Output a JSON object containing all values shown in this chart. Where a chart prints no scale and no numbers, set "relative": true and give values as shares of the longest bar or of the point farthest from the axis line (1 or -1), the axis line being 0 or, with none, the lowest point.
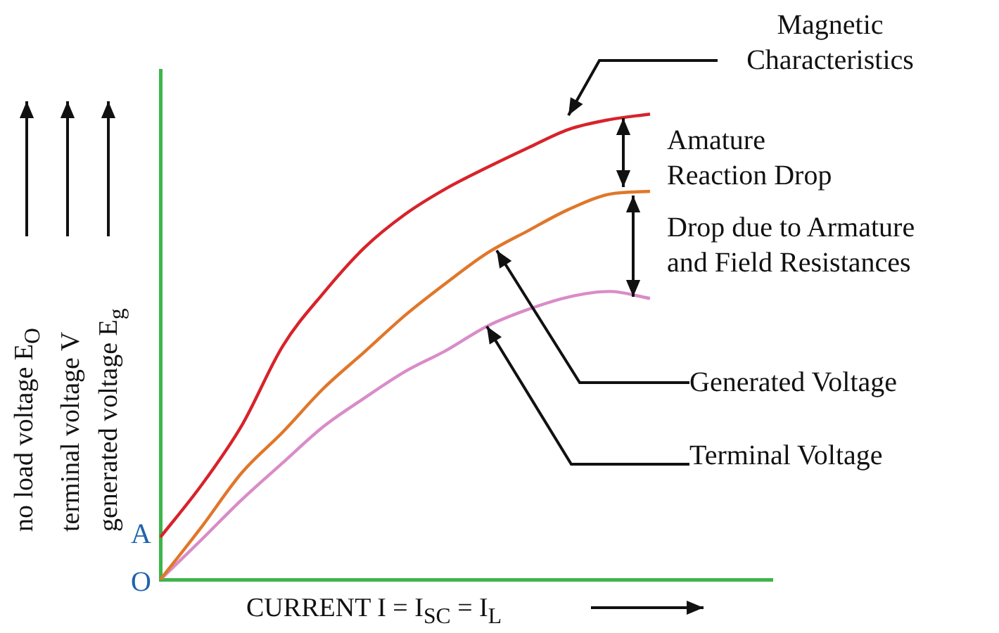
{
  "chart_data": {
    "type": "line",
    "relative": true,
    "categories": [
      null,
      null,
      null,
      null,
      null,
      null,
      null,
      null,
      null,
      null,
      null,
      null,
      null,
      null,
      null,
      null
    ],
    "xlabel": "CURRENT I = I$_{SC}$ = I$_{L}$",
    "ylabel": "no load voltage E$_{O}$\nterminal voltage V\ngenerated voltage E$_{g}$",
    "series": [
      {
        "name": "Magnetic Characteristics",
        "color": "#d7232b",
        "values": [
          0.091,
          0.202,
          0.332,
          0.502,
          0.616,
          0.713,
          0.785,
          0.84,
          0.885,
          0.927,
          0.967,
          0.988,
          1.0,
          null,
          null,
          null
        ]
      },
      {
        "name": "Generated Voltage",
        "color": "#e0772a",
        "values": [
          0,
          0.112,
          0.23,
          0.317,
          0.411,
          0.489,
          0.568,
          0.637,
          0.701,
          0.749,
          0.795,
          0.828,
          0.834,
          null,
          null,
          null
        ]
      },
      {
        "name": "Terminal Voltage",
        "color": "#d98cc8",
        "values": [
          0,
          0.085,
          0.172,
          0.251,
          0.329,
          0.39,
          0.447,
          0.492,
          0.544,
          0.58,
          0.607,
          0.619,
          0.604,
          null,
          null,
          null
        ]
      }
    ],
    "annotations": [
      "Amature\nReaction Drop",
      "Drop due to Armature\nand Field Resistances",
      "A",
      "O"
    ],
    "marker": "none"
  }
}
